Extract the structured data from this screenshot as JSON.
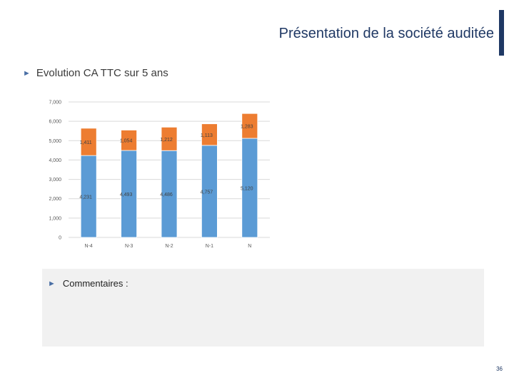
{
  "header": {
    "title": "Présentation de la société auditée"
  },
  "section": {
    "bullet": "►",
    "heading": "Evolution CA TTC sur 5 ans"
  },
  "colors": {
    "series_base": "#5b9bd5",
    "series_top": "#ed7d31",
    "accent": "#1f3864",
    "grid": "#d9d9d9"
  },
  "chart_data": {
    "type": "bar",
    "stacked": true,
    "categories": [
      "N-4",
      "N-3",
      "N-2",
      "N-1",
      "N"
    ],
    "series": [
      {
        "values": [
          4231,
          4493,
          4486,
          4757,
          5120
        ]
      },
      {
        "values": [
          1411,
          1054,
          1212,
          1113,
          1283
        ]
      }
    ],
    "y_ticks": [
      "0",
      "1,000",
      "2,000",
      "3,000",
      "4,000",
      "5,000",
      "6,000",
      "7,000"
    ],
    "data_labels": [
      [
        "4,231",
        "4,493",
        "4,486",
        "4,757",
        "5,120"
      ],
      [
        "1,411",
        "1,054",
        "1,212",
        "1,113",
        "1,283"
      ]
    ],
    "ylim": [
      0,
      7000
    ],
    "grid": true
  },
  "comments": {
    "bullet": "►",
    "label": "Commentaires :"
  },
  "footer": {
    "page_number": "36"
  }
}
